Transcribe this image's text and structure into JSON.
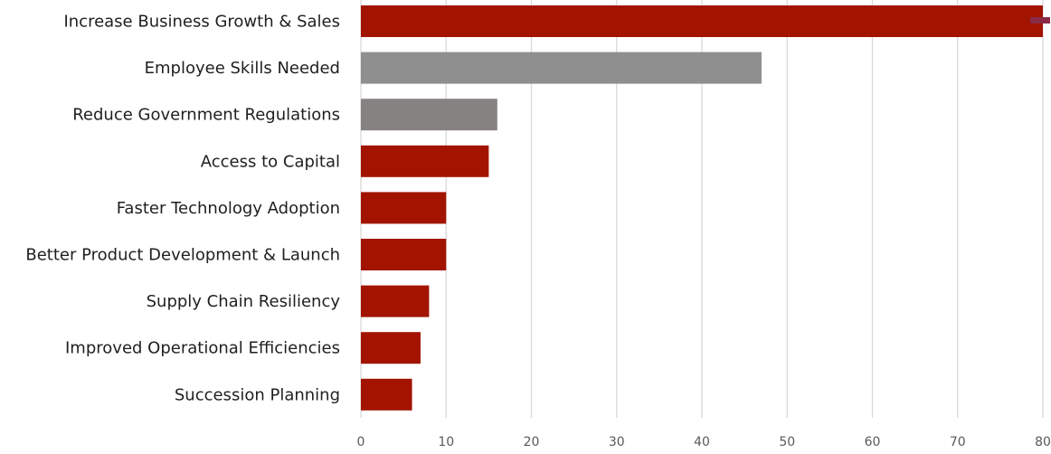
{
  "chart_data": {
    "type": "bar",
    "orientation": "horizontal",
    "categories": [
      "Increase Business Growth & Sales",
      "Employee Skills Needed",
      "Reduce Government Regulations",
      "Access to Capital",
      "Faster Technology Adoption",
      "Better Product Development & Launch",
      "Supply Chain Resiliency",
      "Improved Operational Efficiencies",
      "Succession Planning"
    ],
    "values": [
      80,
      47,
      16,
      15,
      10,
      10,
      8,
      7,
      6
    ],
    "bar_colors": [
      "#a21400",
      "#8f8f8f",
      "#878282",
      "#a21400",
      "#a21400",
      "#a21400",
      "#a21400",
      "#a21400",
      "#a21400"
    ],
    "x_ticks": [
      "0",
      "10",
      "20",
      "30",
      "40",
      "50",
      "60",
      "70",
      "80"
    ],
    "xlim": [
      0,
      80
    ],
    "grid": "vertical",
    "legend": "none",
    "marker_color": "#8b2a45",
    "title": "",
    "xlabel": "",
    "ylabel": ""
  }
}
